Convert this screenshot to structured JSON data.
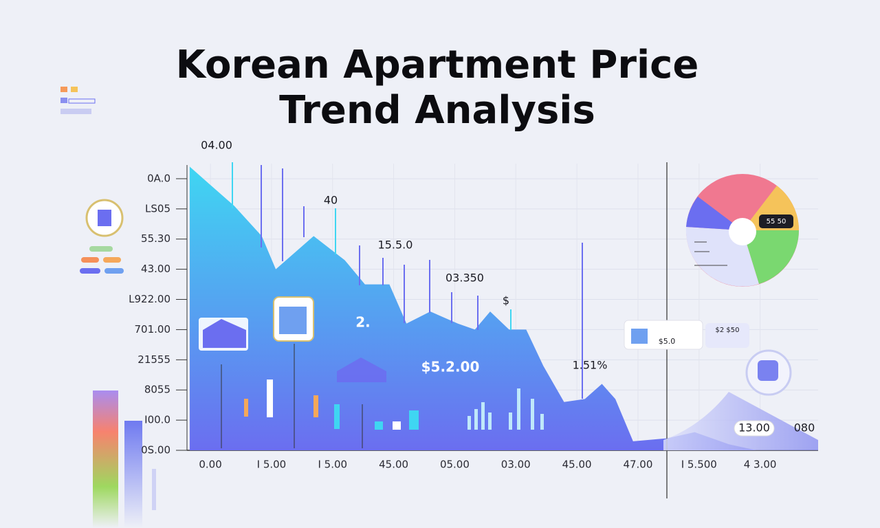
{
  "chart_data": {
    "type": "area",
    "title": [
      "Korean Apartment Price",
      "Trend Analysis"
    ],
    "x": [
      -0.34,
      -0.06,
      0.39,
      0.84,
      1.07,
      1.69,
      2.2,
      2.53,
      2.93,
      3.21,
      3.6,
      4.05,
      4.33,
      4.58,
      4.89,
      5.17,
      5.45,
      5.79,
      6.13,
      6.41,
      6.63,
      6.92,
      7.48,
      7.93,
      8.49,
      8.94
    ],
    "y": [
      9.4,
      8.9,
      8.1,
      7.1,
      6.0,
      7.1,
      6.3,
      5.5,
      5.5,
      4.2,
      4.6,
      4.2,
      4.0,
      4.6,
      4.0,
      4.0,
      2.8,
      1.6,
      1.7,
      2.2,
      1.7,
      0.3,
      0.4,
      0.6,
      0.2,
      0.0
    ],
    "color": "#3fd6f2",
    "color2": "#6b6ef0",
    "xlim": [
      -0.35,
      9.95
    ],
    "ylim": [
      0,
      9.5
    ],
    "xticks": [
      {
        "value": 0,
        "label": "0.00"
      },
      {
        "value": 1,
        "label": "I 5.00"
      },
      {
        "value": 2,
        "label": "I 5.00"
      },
      {
        "value": 3,
        "label": "45.00"
      },
      {
        "value": 4,
        "label": "05.00"
      },
      {
        "value": 5,
        "label": "03.00"
      },
      {
        "value": 6,
        "label": "45.00"
      },
      {
        "value": 7,
        "label": "47.00"
      },
      {
        "value": 8,
        "label": "I 5.500"
      },
      {
        "value": 9,
        "label": "4 3.00"
      }
    ],
    "yticks": [
      {
        "value": 0,
        "label": "0S.00"
      },
      {
        "value": 1,
        "label": "I00.0"
      },
      {
        "value": 2,
        "label": "8055"
      },
      {
        "value": 3,
        "label": "21555"
      },
      {
        "value": 4,
        "label": "701.00"
      },
      {
        "value": 5,
        "label": "L922.00"
      },
      {
        "value": 6,
        "label": "43.00"
      },
      {
        "value": 7,
        "label": "55.30"
      },
      {
        "value": 8,
        "label": "LS05"
      },
      {
        "value": 9,
        "label": "0A.0"
      }
    ],
    "grid": true,
    "annotations": [
      "04.00",
      "40",
      "15.5.0",
      "03.350",
      "$",
      "2.",
      "$5.2.00",
      "1.51%",
      "13.00",
      "080",
      "55 50",
      "$5.0",
      "$2 $50"
    ]
  }
}
